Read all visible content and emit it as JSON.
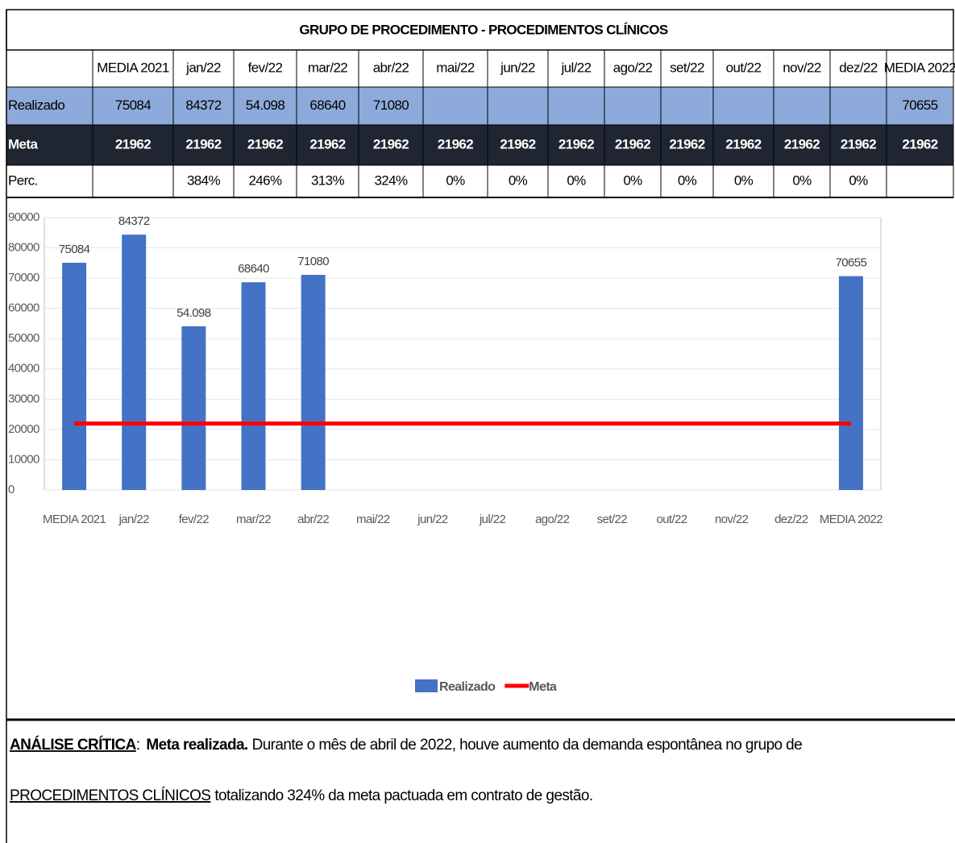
{
  "table": {
    "title": "GRUPO DE PROCEDIMENTO - PROCEDIMENTOS CLÍNICOS",
    "header": [
      "MEDIA 2021",
      "jan/22",
      "fev/22",
      "mar/22",
      "abr/22",
      "mai/22",
      "jun/22",
      "jul/22",
      "ago/22",
      "set/22",
      "out/22",
      "nov/22",
      "dez/22",
      "MEDIA 2022"
    ],
    "rows": [
      [
        "Realizado",
        "75084",
        "84372",
        "54.098",
        "68640",
        "71080",
        null,
        null,
        null,
        null,
        null,
        null,
        null,
        null,
        "70655"
      ],
      [
        "Meta",
        "21962",
        "21962",
        "21962",
        "21962",
        "21962",
        "21962",
        "21962",
        "21962",
        "21962",
        "21962",
        "21962",
        "21962",
        "21962",
        "21962"
      ],
      [
        "Perc.",
        null,
        "384%",
        "246%",
        "313%",
        "324%",
        "0%",
        "0%",
        "0%",
        "0%",
        "0%",
        "0%",
        "0%",
        "0%",
        null
      ]
    ]
  },
  "chart_data": {
    "type": "bar",
    "categories": [
      "MEDIA 2021",
      "jan/22",
      "fev/22",
      "mar/22",
      "abr/22",
      "mai/22",
      "jun/22",
      "jul/22",
      "ago/22",
      "set/22",
      "out/22",
      "nov/22",
      "dez/22",
      "MEDIA 2022"
    ],
    "series": [
      {
        "name": "Realizado",
        "color": "#4472c4",
        "type": "bar",
        "values": [
          75084,
          84372,
          54098,
          68640,
          71080,
          null,
          null,
          null,
          null,
          null,
          null,
          null,
          null,
          70655
        ],
        "value_labels": [
          "75084",
          "84372",
          "54.098",
          "68640",
          "71080",
          null,
          null,
          null,
          null,
          null,
          null,
          null,
          null,
          "70655"
        ]
      },
      {
        "name": "Meta",
        "color": "#ff0000",
        "type": "line",
        "values": [
          21962,
          21962,
          21962,
          21962,
          21962,
          21962,
          21962,
          21962,
          21962,
          21962,
          21962,
          21962,
          21962,
          21962
        ]
      }
    ],
    "ylim": [
      0,
      90000
    ],
    "yticks": [
      0,
      10000,
      20000,
      30000,
      40000,
      50000,
      60000,
      70000,
      80000,
      90000
    ],
    "grid": true,
    "legend": "bottom"
  },
  "analysis": {
    "label": "ANÁLISE CRÍTICA",
    "separator": ":",
    "status": "Meta realizada.",
    "text1": "Durante o mês de abril de 2022, houve aumento da demanda espontânea  no grupo de",
    "highlight": "PROCEDIMENTOS CLÍNICOS",
    "text2": "totalizando 324% da meta pactuada em contrato de gestão."
  }
}
